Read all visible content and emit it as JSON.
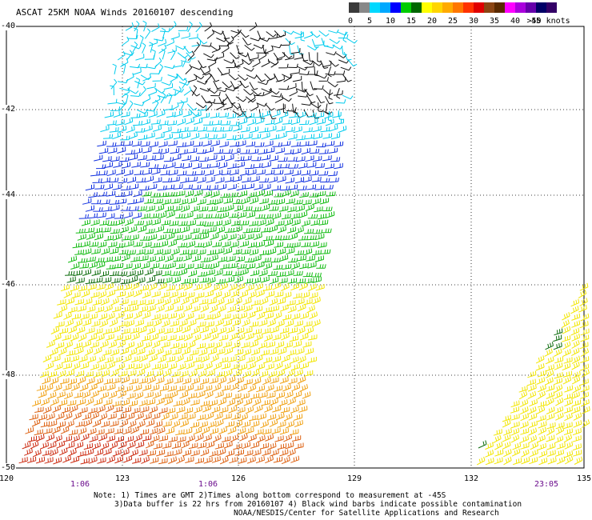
{
  "title": "ASCAT 25KM NOAA Winds 20160107 descending",
  "legend": {
    "labels": [
      "0",
      "5",
      "10",
      "15",
      "20",
      "25",
      "30",
      "35",
      "40",
      "45",
      ">50 knots"
    ],
    "colors": [
      "#3a3a3a",
      "#888888",
      "#00d8ff",
      "#00a8ff",
      "#0000ff",
      "#00cc00",
      "#006600",
      "#ffff00",
      "#ffd500",
      "#ffaa00",
      "#ff7700",
      "#ff3300",
      "#e00000",
      "#8b4513",
      "#5a2a00",
      "#ff00ff",
      "#aa00dd",
      "#6600aa",
      "#000066",
      "#330066"
    ]
  },
  "axes": {
    "lat_labels": [
      "-40",
      "-42",
      "-44",
      "-46",
      "-48",
      "-50"
    ],
    "lon_labels": [
      "120",
      "123",
      "126",
      "129",
      "132",
      "135"
    ],
    "time_labels": [
      "1:06",
      "1:06",
      "23:05"
    ]
  },
  "notes": [
    "Note: 1) Times are GMT 2)Times along bottom correspond to measurement at -45S",
    "3)Data buffer is 22 hrs from 20160107 4) Black wind barbs indicate possible contamination",
    "NOAA/NESDIS/Center for Satellite Applications and Research"
  ],
  "wind_bands": [
    {
      "name": "black",
      "color": "#111111"
    },
    {
      "name": "cyan",
      "color": "#00ccee"
    },
    {
      "name": "blue",
      "color": "#1030e0"
    },
    {
      "name": "green",
      "color": "#10bb10"
    },
    {
      "name": "darkgreen",
      "color": "#0a6a0a"
    },
    {
      "name": "yellow",
      "color": "#f2e600"
    },
    {
      "name": "orange",
      "color": "#f0a010"
    },
    {
      "name": "darkorange",
      "color": "#dd6010"
    },
    {
      "name": "red",
      "color": "#cc2a10"
    }
  ]
}
